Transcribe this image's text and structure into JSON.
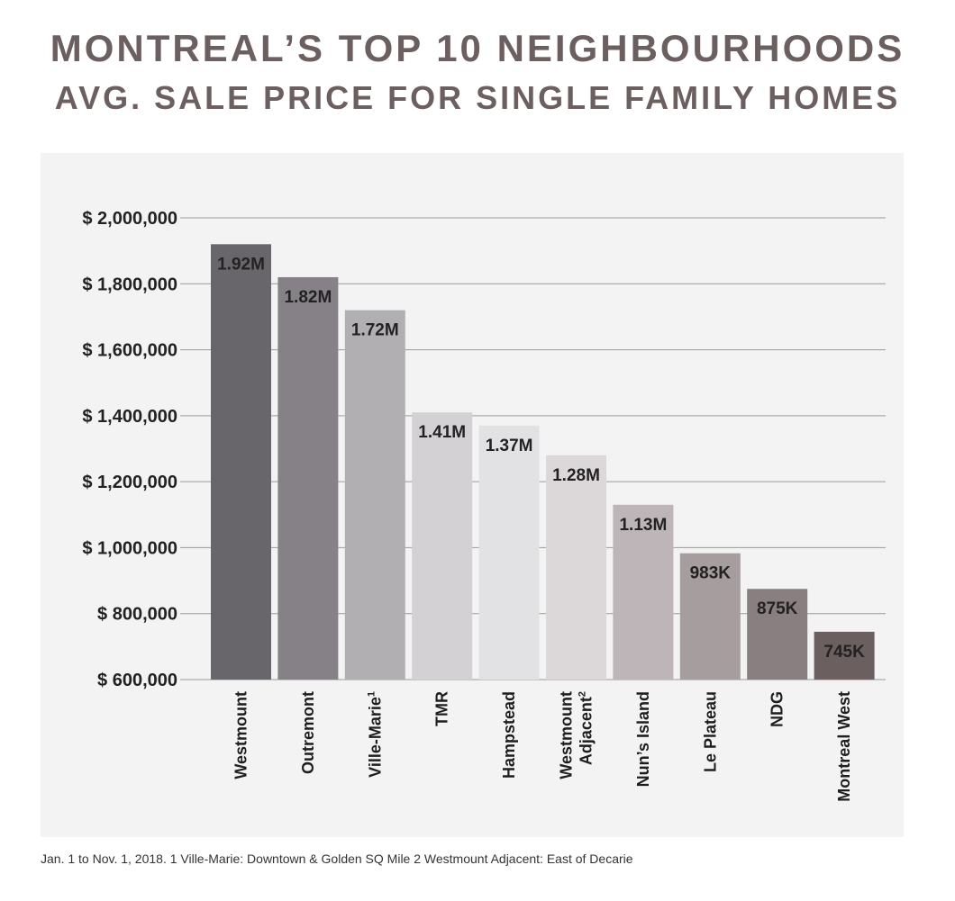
{
  "chart_data": {
    "type": "bar",
    "title": "MONTREAL’S TOP 10 NEIGHBOURHOODS",
    "subtitle": "AVG. SALE PRICE FOR SINGLE FAMILY HOMES",
    "xlabel": "",
    "ylabel": "",
    "ylim": [
      600000,
      2000000
    ],
    "yticks": [
      {
        "value": 2000000,
        "label": "$ 2,000,000"
      },
      {
        "value": 1800000,
        "label": "$ 1,800,000"
      },
      {
        "value": 1600000,
        "label": "$ 1,600,000"
      },
      {
        "value": 1400000,
        "label": "$ 1,400,000"
      },
      {
        "value": 1200000,
        "label": "$ 1,200,000"
      },
      {
        "value": 1000000,
        "label": "$ 1,000,000"
      },
      {
        "value": 800000,
        "label": "$ 800,000"
      },
      {
        "value": 600000,
        "label": "$ 600,000"
      }
    ],
    "grid": true,
    "legend": "none",
    "categories": [
      {
        "lines": [
          "Westmount"
        ],
        "sup": ""
      },
      {
        "lines": [
          "Outremont"
        ],
        "sup": ""
      },
      {
        "lines": [
          "Ville-Marie"
        ],
        "sup": "1"
      },
      {
        "lines": [
          "TMR"
        ],
        "sup": ""
      },
      {
        "lines": [
          "Hampstead"
        ],
        "sup": ""
      },
      {
        "lines": [
          "Westmount",
          "Adjacent"
        ],
        "sup": "2"
      },
      {
        "lines": [
          "Nun’s Island"
        ],
        "sup": ""
      },
      {
        "lines": [
          "Le Plateau"
        ],
        "sup": ""
      },
      {
        "lines": [
          "NDG"
        ],
        "sup": ""
      },
      {
        "lines": [
          "Montreal West"
        ],
        "sup": ""
      }
    ],
    "values": [
      1920000,
      1820000,
      1720000,
      1410000,
      1370000,
      1280000,
      1130000,
      983000,
      875000,
      745000
    ],
    "data_labels": [
      "1.92M",
      "1.82M",
      "1.72M",
      "1.41M",
      "1.37M",
      "1.28M",
      "1.13M",
      "983K",
      "875K",
      "745K"
    ],
    "colors": [
      "#69666b",
      "#858186",
      "#b2afb3",
      "#d3d1d3",
      "#e2e1e3",
      "#dcd8d9",
      "#bdb5b7",
      "#a69d9e",
      "#897f80",
      "#6b5f60"
    ]
  },
  "footnote": "Jan. 1 to Nov. 1, 2018.  1 Ville-Marie: Downtown & Golden SQ Mile  2 Westmount Adjacent: East of Decarie",
  "colors": {
    "title": "#6b5f60",
    "panel": "#f3f3f3",
    "grid": "#9a9a9a"
  }
}
